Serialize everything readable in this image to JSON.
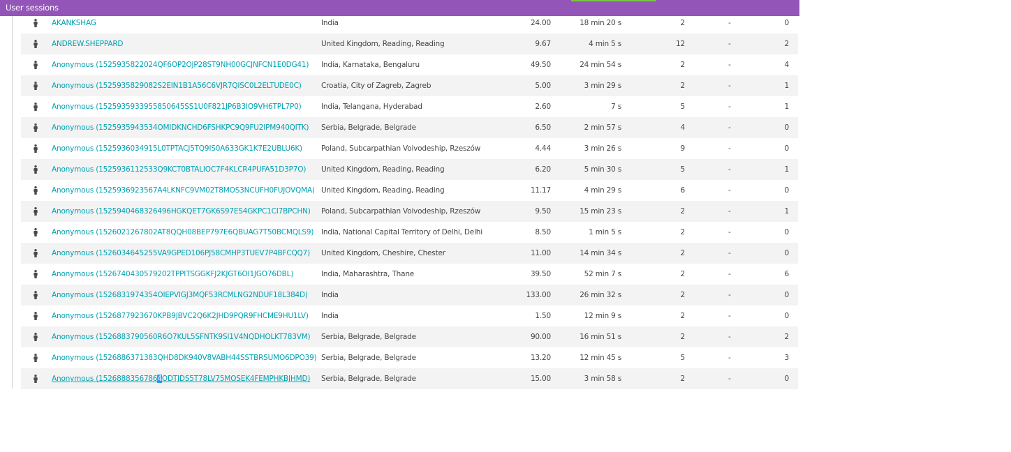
{
  "header": {
    "title": "User sessions"
  },
  "columns": [],
  "rows": [
    {
      "name": "AKANKSHAG",
      "location": "India",
      "value": "24.00",
      "duration": "18 min 20 s",
      "a": "2",
      "b": "-",
      "c": "0"
    },
    {
      "name": "ANDREW.SHEPPARD",
      "location": "United Kingdom, Reading, Reading",
      "value": "9.67",
      "duration": "4 min 5 s",
      "a": "12",
      "b": "-",
      "c": "2"
    },
    {
      "name": "Anonymous (1525935822024QF6OP2OJP28ST9NH00GCJNFCN1E0DG41)",
      "location": "India, Karnataka, Bengaluru",
      "value": "49.50",
      "duration": "24 min 54 s",
      "a": "2",
      "b": "-",
      "c": "4"
    },
    {
      "name": "Anonymous (1525935829082S2EIN1B1A56C6VJR7QISC0L2ELTUDE0C)",
      "location": "Croatia, City of Zagreb, Zagreb",
      "value": "5.00",
      "duration": "3 min 29 s",
      "a": "2",
      "b": "-",
      "c": "1"
    },
    {
      "name": "Anonymous (1525935933955850645SS1U0F821JP6B3IO9VH6TPL7P0)",
      "location": "India, Telangana, Hyderabad",
      "value": "2.60",
      "duration": "7 s",
      "a": "5",
      "b": "-",
      "c": "1"
    },
    {
      "name": "Anonymous (1525935943534OMIDKNCHD6FSHKPC9Q9FU2IPM940QITK)",
      "location": "Serbia, Belgrade, Belgrade",
      "value": "6.50",
      "duration": "2 min 57 s",
      "a": "4",
      "b": "-",
      "c": "0"
    },
    {
      "name": "Anonymous (1525936034915L0TPTACJ5TQ9IS0A633GK1K7E2UBLU6K)",
      "location": "Poland, Subcarpathian Voivodeship, Rzeszów",
      "value": "4.44",
      "duration": "3 min 26 s",
      "a": "9",
      "b": "-",
      "c": "0"
    },
    {
      "name": "Anonymous (1525936112533Q9KCT0BTALIOC7F4KLCR4PUFA51D3P7O)",
      "location": "United Kingdom, Reading, Reading",
      "value": "6.20",
      "duration": "5 min 30 s",
      "a": "5",
      "b": "-",
      "c": "1"
    },
    {
      "name": "Anonymous (1525936923567A4LKNFC9VM02T8MOS3NCUFH0FUJOVQMA)",
      "location": "United Kingdom, Reading, Reading",
      "value": "11.17",
      "duration": "4 min 29 s",
      "a": "6",
      "b": "-",
      "c": "0"
    },
    {
      "name": "Anonymous (1525940468326496HGKQET7GK6S97ES4GKPC1CI7BPCHN)",
      "location": "Poland, Subcarpathian Voivodeship, Rzeszów",
      "value": "9.50",
      "duration": "15 min 23 s",
      "a": "2",
      "b": "-",
      "c": "1"
    },
    {
      "name": "Anonymous (1526021267802AT8QQH08BEP797E6QBUAG7T50BCMQLS9)",
      "location": "India, National Capital Territory of Delhi, Delhi",
      "value": "8.50",
      "duration": "1 min 5 s",
      "a": "2",
      "b": "-",
      "c": "0"
    },
    {
      "name": "Anonymous (1526034645255VA9GPED106PJ58CMHP3TUEV7P4BFCQQ7)",
      "location": "United Kingdom, Cheshire, Chester",
      "value": "11.00",
      "duration": "14 min 34 s",
      "a": "2",
      "b": "-",
      "c": "0"
    },
    {
      "name": "Anonymous (1526740430579202TPPITSGGKFJ2KJGT6OI1JGO76DBL)",
      "location": "India, Maharashtra, Thane",
      "value": "39.50",
      "duration": "52 min 7 s",
      "a": "2",
      "b": "-",
      "c": "6"
    },
    {
      "name": "Anonymous (1526831974354OIEPVIGJ3MQF53RCMLNG2NDUF18L384D)",
      "location": "India",
      "value": "133.00",
      "duration": "26 min 32 s",
      "a": "2",
      "b": "-",
      "c": "0"
    },
    {
      "name": "Anonymous (1526877923670KPB9JBVC2Q6K2JHD9PQR9FHCME9HU1LV)",
      "location": "India",
      "value": "1.50",
      "duration": "12 min 9 s",
      "a": "2",
      "b": "-",
      "c": "0"
    },
    {
      "name": "Anonymous (1526883790560R6O7KUL5SFNTK9SI1V4NQDHOLKT783VM)",
      "location": "Serbia, Belgrade, Belgrade",
      "value": "90.00",
      "duration": "16 min 51 s",
      "a": "2",
      "b": "-",
      "c": "2"
    },
    {
      "name": "Anonymous (1526886371383QHD8DK940V8VABH44SSTBRSUMO6DPO39)",
      "location": "Serbia, Belgrade, Belgrade",
      "value": "13.20",
      "duration": "12 min 45 s",
      "a": "5",
      "b": "-",
      "c": "3"
    },
    {
      "name": "Anonymous (1526888356786",
      "name_sel": "4",
      "name_rest": "ODTJDS5T78LV75MOSEK4FEMPHKBJHMD)",
      "location": "Serbia, Belgrade, Belgrade",
      "value": "15.00",
      "duration": "3 min 58 s",
      "a": "2",
      "b": "-",
      "c": "0"
    }
  ],
  "colors": {
    "header": "#9355b7",
    "link": "#00a1b2",
    "selection": "#3399ff",
    "row_alt": "#f3f3f3"
  },
  "icons": {
    "row_icon": "user-icon"
  }
}
